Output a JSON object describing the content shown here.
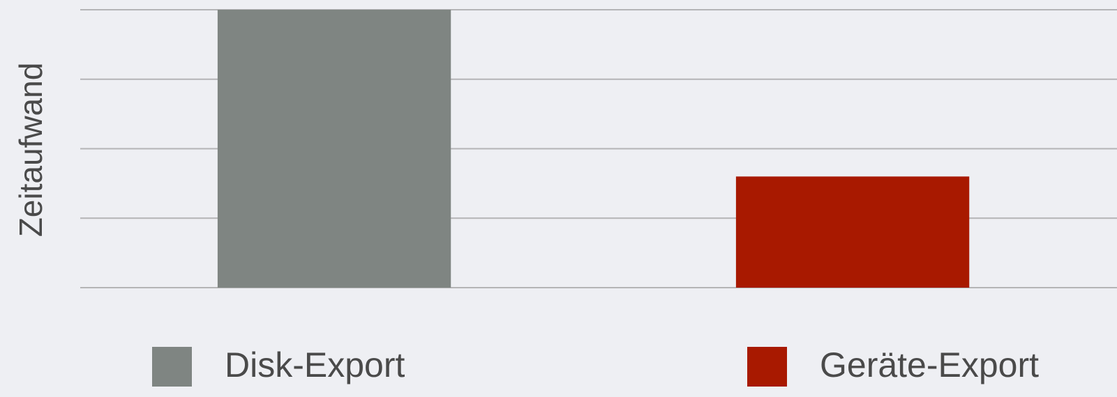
{
  "chart_data": {
    "type": "bar",
    "y_label": "Zeitaufwand",
    "categories": [
      null
    ],
    "series": [
      {
        "name": "Disk-Export",
        "color": "#7f8582",
        "values": [
          4
        ]
      },
      {
        "name": "Geräte-Export",
        "color": "#a81900",
        "values": [
          1.6
        ]
      }
    ],
    "ylim": [
      0,
      4
    ],
    "yticks": [
      0,
      1,
      2,
      3,
      4
    ],
    "grid": true,
    "legend": "bottom"
  }
}
